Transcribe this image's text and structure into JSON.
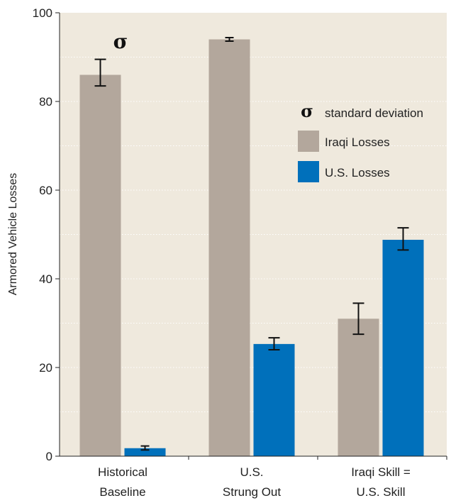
{
  "chart_data": {
    "type": "bar",
    "ylabel": "Armored Vehicle Losses",
    "ylim": [
      0,
      100
    ],
    "yticks": [
      0,
      20,
      40,
      60,
      80,
      100
    ],
    "grid": true,
    "background_color": "#efe9dd",
    "categories": [
      [
        "Historical",
        "Baseline"
      ],
      [
        "U.S.",
        "Strung Out"
      ],
      [
        "Iraqi Skill =",
        "U.S. Skill"
      ]
    ],
    "series": [
      {
        "name": "Iraqi Losses",
        "color": "#b3a79c",
        "values": [
          86,
          94,
          31
        ],
        "error": [
          [
            83.5,
            89.5
          ],
          [
            93.6,
            94.4
          ],
          [
            27.5,
            34.5
          ]
        ]
      },
      {
        "name": "U.S. Losses",
        "color": "#0070bb",
        "values": [
          1.8,
          25.3,
          48.8
        ],
        "error": [
          [
            1.4,
            2.3
          ],
          [
            24.0,
            26.7
          ],
          [
            46.5,
            51.5
          ]
        ]
      }
    ],
    "legend": {
      "placement": "right",
      "sigma_symbol": "σ",
      "sigma_label": "standard deviation"
    },
    "annotation_symbol": "σ"
  }
}
